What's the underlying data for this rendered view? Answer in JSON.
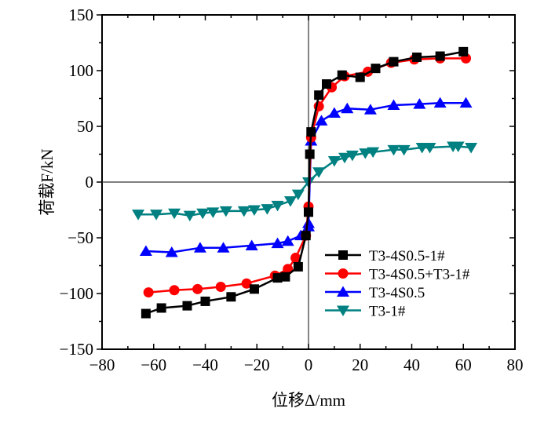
{
  "chart_data": {
    "type": "line",
    "title": "",
    "xlabel": "位移Δ/mm",
    "ylabel": "荷载F/kN",
    "xlim": [
      -80,
      80
    ],
    "ylim": [
      -150,
      150
    ],
    "xticks": [
      -80,
      -60,
      -40,
      -20,
      0,
      20,
      40,
      60,
      80
    ],
    "xtick_labels": [
      "−80",
      "−60",
      "−40",
      "−20",
      "0",
      "20",
      "40",
      "60",
      "80"
    ],
    "yticks": [
      -150,
      -100,
      -50,
      0,
      50,
      100,
      150
    ],
    "ytick_labels": [
      "−150",
      "−100",
      "−50",
      "0",
      "50",
      "100",
      "150"
    ],
    "grid": false,
    "zero_lines": true,
    "legend_position": "lower-right",
    "series": [
      {
        "name": "T3-4S0.5-1#",
        "color": "#000000",
        "marker": "square",
        "x": [
          -63,
          -57,
          -47,
          -40,
          -30,
          -21,
          -12,
          -9,
          -4,
          -1,
          0,
          0.5,
          1,
          4,
          7,
          13,
          20,
          26,
          33,
          42,
          51,
          60
        ],
        "y": [
          -118,
          -113,
          -111,
          -107,
          -103,
          -96,
          -86,
          -85,
          -76,
          -48,
          -27,
          25,
          45,
          78,
          88,
          96,
          94,
          102,
          108,
          112,
          113,
          117
        ]
      },
      {
        "name": "T3-4S0.5+T3-1#",
        "color": "#ff0000",
        "marker": "circle",
        "x": [
          -62,
          -52,
          -43,
          -34,
          -24,
          -13,
          -8,
          -5,
          -1,
          0,
          1,
          4,
          9,
          14,
          23,
          32,
          41,
          51,
          61
        ],
        "y": [
          -99,
          -97,
          -96,
          -94,
          -91,
          -84,
          -78,
          -68,
          -48,
          -22,
          40,
          68,
          85,
          95,
          99,
          107,
          110,
          111,
          111
        ]
      },
      {
        "name": "T3-4S0.5",
        "color": "#0000ff",
        "marker": "triangle-up",
        "x": [
          -63,
          -53,
          -42,
          -33,
          -22,
          -12,
          -8,
          -3,
          0,
          0,
          1,
          5,
          10,
          15,
          24,
          33,
          43,
          51,
          61
        ],
        "y": [
          -62,
          -63,
          -59,
          -59,
          -57,
          -55,
          -53,
          -48,
          -40,
          -37,
          37,
          55,
          62,
          66,
          65,
          69,
          70,
          71,
          71
        ]
      },
      {
        "name": "T3-1#",
        "color": "#008080",
        "marker": "triangle-down",
        "x": [
          -66,
          -59,
          -52,
          -46,
          -41,
          -37,
          -32,
          -25,
          -21,
          -16,
          -12,
          -7,
          -4,
          0,
          4,
          10,
          14,
          17,
          22,
          25,
          33,
          37,
          44,
          47,
          56,
          58,
          63
        ],
        "y": [
          -29,
          -29,
          -28,
          -30,
          -28,
          -27,
          -26,
          -26,
          -25,
          -24,
          -21,
          -17,
          -11,
          0,
          9,
          19,
          22,
          24,
          26,
          27,
          29,
          29,
          31,
          31,
          32,
          32,
          31
        ]
      }
    ]
  }
}
